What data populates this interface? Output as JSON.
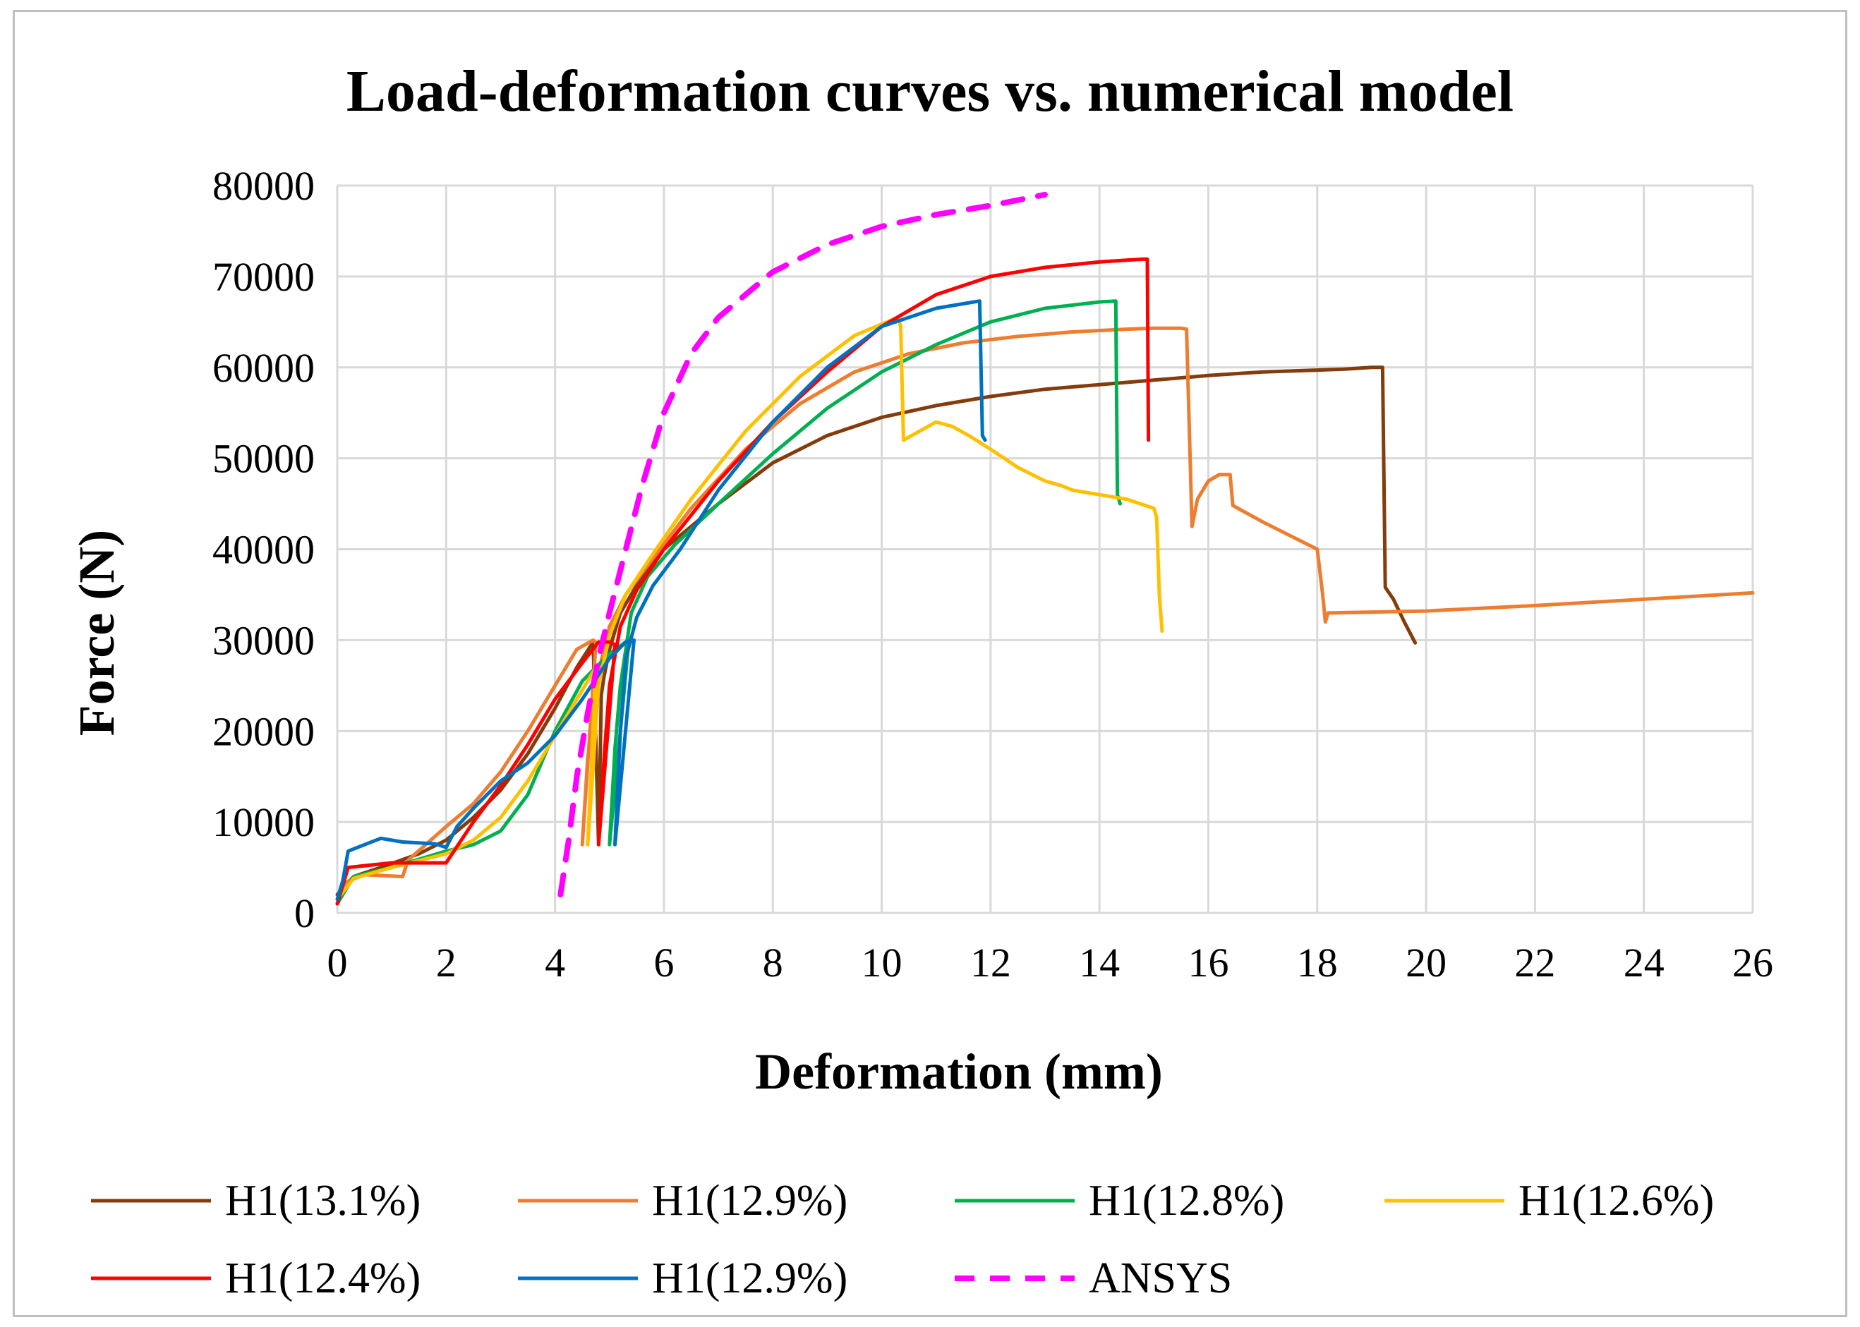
{
  "chart_data": {
    "type": "line",
    "title": "Load-deformation  curves vs. numerical model",
    "xlabel": "Deformation (mm)",
    "ylabel": "Force (N)",
    "xlim": [
      0,
      26
    ],
    "ylim": [
      0,
      80000
    ],
    "xticks": [
      0,
      2,
      4,
      6,
      8,
      10,
      12,
      14,
      16,
      18,
      20,
      22,
      24,
      26
    ],
    "yticks": [
      0,
      10000,
      20000,
      30000,
      40000,
      50000,
      60000,
      70000,
      80000
    ],
    "grid": true,
    "legend_position": "bottom",
    "series": [
      {
        "name": "H1(13.1%)",
        "color": "#843c0c",
        "dash": "solid",
        "x": [
          0,
          0.3,
          0.8,
          1.5,
          2.0,
          2.5,
          3.0,
          3.5,
          4.0,
          4.4,
          4.7,
          4.8,
          4.85,
          4.9,
          5.0,
          5.2,
          5.5,
          6.0,
          7.0,
          8.0,
          9.0,
          10.0,
          11.0,
          12.0,
          13.0,
          14.0,
          15.0,
          16.0,
          17.0,
          18.0,
          18.5,
          19.0,
          19.2,
          19.25,
          19.4,
          19.6,
          19.8
        ],
        "y": [
          2000,
          4000,
          5000,
          6500,
          8000,
          10500,
          13500,
          17500,
          22500,
          27000,
          29800,
          7500,
          24000,
          26000,
          29000,
          33000,
          36000,
          40000,
          45000,
          49500,
          52500,
          54500,
          55800,
          56800,
          57600,
          58100,
          58600,
          59100,
          59500,
          59700,
          59800,
          60000,
          60000,
          35800,
          34500,
          32000,
          29700
        ]
      },
      {
        "name": "H1(12.9%)",
        "color": "#ed7d31",
        "dash": "solid",
        "x": [
          0,
          0.2,
          0.5,
          1.2,
          1.3,
          2.0,
          2.5,
          3.0,
          3.5,
          4.0,
          4.4,
          4.7,
          4.75,
          4.5,
          4.6,
          4.8,
          5.0,
          5.3,
          5.8,
          6.5,
          7.5,
          8.5,
          9.5,
          10.5,
          11.5,
          12.5,
          13.5,
          14.5,
          15.0,
          15.5,
          15.6,
          15.7,
          15.8,
          16.0,
          16.2,
          16.4,
          16.45,
          17.0,
          17.5,
          18.0,
          18.1,
          18.15,
          18.2,
          18.3,
          20.0,
          22.0,
          24.0,
          26.0
        ],
        "y": [
          1500,
          3500,
          4200,
          4000,
          5800,
          9500,
          12000,
          15500,
          20000,
          25000,
          29000,
          30000,
          29700,
          7500,
          17000,
          26500,
          31500,
          35000,
          39000,
          44500,
          51000,
          56000,
          59500,
          61500,
          62700,
          63400,
          63900,
          64200,
          64300,
          64300,
          64200,
          42500,
          45500,
          47500,
          48200,
          48200,
          44800,
          43000,
          41500,
          40000,
          35000,
          32000,
          33000,
          33000,
          33200,
          33800,
          34500,
          35200
        ]
      },
      {
        "name": "H1(12.8%)",
        "color": "#00b050",
        "dash": "solid",
        "x": [
          0,
          0.3,
          1.0,
          2.0,
          2.5,
          3.0,
          3.5,
          4.0,
          4.5,
          5.0,
          5.3,
          5.35,
          5.0,
          5.1,
          5.2,
          5.4,
          5.7,
          6.2,
          7.0,
          8.0,
          9.0,
          10.0,
          11.0,
          12.0,
          13.0,
          14.0,
          14.3,
          14.33,
          14.38
        ],
        "y": [
          1000,
          4000,
          5000,
          6800,
          7500,
          9000,
          13000,
          20000,
          25500,
          28500,
          29800,
          29500,
          7500,
          18000,
          25000,
          33000,
          37000,
          40500,
          45000,
          50500,
          55500,
          59500,
          62500,
          65000,
          66500,
          67200,
          67300,
          46000,
          45000
        ]
      },
      {
        "name": "H1(12.6%)",
        "color": "#ffc000",
        "dash": "solid",
        "x": [
          0,
          0.3,
          1.0,
          2.0,
          2.5,
          3.0,
          3.5,
          4.0,
          4.5,
          4.7,
          4.75,
          4.6,
          4.7,
          4.8,
          5.0,
          5.3,
          5.8,
          6.5,
          7.5,
          8.5,
          9.5,
          10.3,
          10.35,
          10.4,
          10.7,
          11.0,
          11.3,
          11.6,
          12.0,
          12.5,
          13.0,
          13.3,
          13.5,
          14.0,
          14.5,
          15.0,
          15.05,
          15.1,
          15.15
        ],
        "y": [
          1500,
          3800,
          5000,
          6500,
          8000,
          10500,
          14500,
          19500,
          24500,
          26500,
          27000,
          7500,
          16000,
          25000,
          30500,
          35000,
          39500,
          45500,
          53000,
          59000,
          63500,
          65500,
          64500,
          52000,
          53000,
          54000,
          53500,
          52500,
          51000,
          49000,
          47500,
          47000,
          46500,
          46000,
          45500,
          44500,
          43500,
          35000,
          31000
        ]
      },
      {
        "name": "H1(12.4%)",
        "color": "#ff0000",
        "dash": "solid",
        "x": [
          0,
          0.2,
          1.0,
          1.5,
          2.0,
          2.5,
          3.0,
          3.5,
          4.0,
          4.5,
          4.8,
          5.0,
          5.1,
          4.8,
          4.9,
          5.0,
          5.2,
          5.5,
          6.0,
          7.0,
          8.0,
          9.0,
          10.0,
          11.0,
          12.0,
          13.0,
          14.0,
          14.5,
          14.8,
          14.88,
          14.9
        ],
        "y": [
          1000,
          5000,
          5500,
          5500,
          5500,
          10000,
          14000,
          18500,
          23500,
          27500,
          29800,
          29800,
          29500,
          7500,
          17000,
          25000,
          31500,
          35500,
          40000,
          47500,
          54000,
          59500,
          64500,
          68000,
          70000,
          71000,
          71600,
          71800,
          71900,
          71900,
          52000
        ]
      },
      {
        "name": "H1(12.9%)",
        "color": "#0070c0",
        "dash": "solid",
        "x": [
          0,
          0.1,
          0.2,
          0.5,
          0.8,
          1.2,
          1.8,
          2.0,
          2.2,
          2.5,
          3.0,
          3.5,
          4.0,
          4.5,
          5.0,
          5.3,
          5.45,
          5.1,
          5.2,
          5.3,
          5.5,
          5.8,
          6.3,
          7.0,
          8.0,
          9.0,
          10.0,
          11.0,
          11.5,
          11.8,
          11.85,
          11.9
        ],
        "y": [
          1500,
          3500,
          6800,
          7500,
          8200,
          7800,
          7600,
          7200,
          9500,
          11500,
          14500,
          16500,
          19500,
          23500,
          28000,
          29800,
          30000,
          7500,
          20000,
          28000,
          32500,
          36000,
          40000,
          46500,
          54000,
          60000,
          64500,
          66500,
          67000,
          67300,
          52500,
          52000
        ]
      },
      {
        "name": "ANSYS",
        "color": "#ff00ff",
        "dash": "dashed",
        "x": [
          4.1,
          4.25,
          4.4,
          4.6,
          4.8,
          5.0,
          5.3,
          5.6,
          6.0,
          6.5,
          7.0,
          7.5,
          8.0,
          9.0,
          10.0,
          11.0,
          12.0,
          13.0
        ],
        "y": [
          2000,
          8000,
          15000,
          22000,
          28000,
          33000,
          40000,
          47000,
          55000,
          61500,
          65500,
          68000,
          70500,
          73500,
          75500,
          76800,
          77800,
          79000
        ]
      }
    ]
  }
}
